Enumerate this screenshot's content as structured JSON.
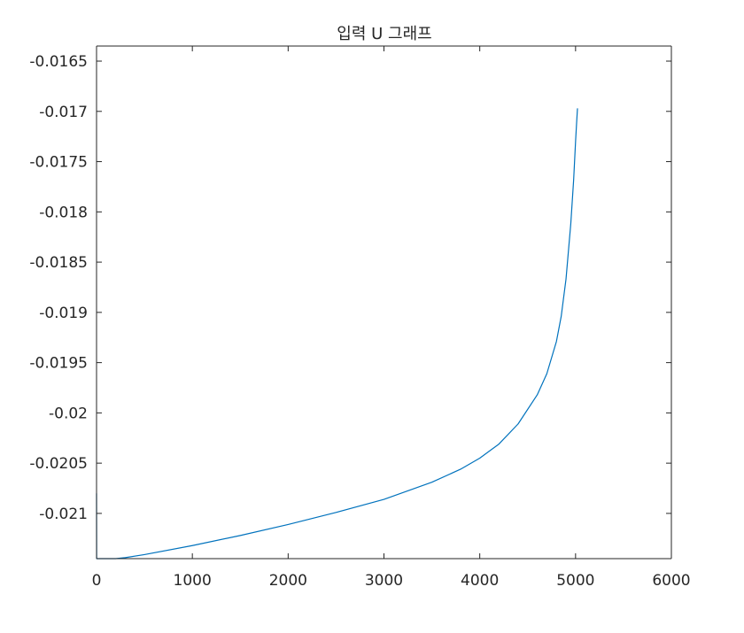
{
  "chart_data": {
    "type": "line",
    "title": "입력 U 그래프",
    "xlabel": "",
    "ylabel": "",
    "xlim": [
      0,
      6000
    ],
    "ylim": [
      -0.02145,
      -0.01635
    ],
    "xticks": [
      0,
      1000,
      2000,
      3000,
      4000,
      5000,
      6000
    ],
    "xtick_labels": [
      "0",
      "1000",
      "2000",
      "3000",
      "4000",
      "5000",
      "6000"
    ],
    "yticks": [
      -0.0165,
      -0.017,
      -0.0175,
      -0.018,
      -0.0185,
      -0.019,
      -0.0195,
      -0.02,
      -0.0205,
      -0.021
    ],
    "ytick_labels": [
      "-0.0165",
      "-0.017",
      "-0.0175",
      "-0.018",
      "-0.0185",
      "-0.019",
      "-0.0195",
      "-0.02",
      "-0.0205",
      "-0.021"
    ],
    "grid": false,
    "legend": false,
    "series": [
      {
        "color": "#0072bd",
        "x": [
          0,
          1,
          5,
          12,
          200,
          300,
          500,
          1000,
          1500,
          2000,
          2500,
          3000,
          3500,
          3800,
          4000,
          4200,
          4400,
          4600,
          4700,
          4800,
          4850,
          4900,
          4950,
          4980,
          5000,
          5010,
          5020
        ],
        "y": [
          -0.0208,
          -0.02145,
          -0.02145,
          -0.02145,
          -0.02145,
          -0.02144,
          -0.02141,
          -0.02132,
          -0.02122,
          -0.02111,
          -0.02099,
          -0.02086,
          -0.02069,
          -0.02056,
          -0.02045,
          -0.02031,
          -0.02011,
          -0.01982,
          -0.01961,
          -0.01929,
          -0.01904,
          -0.01867,
          -0.01812,
          -0.01768,
          -0.0173,
          -0.01713,
          -0.01697
        ]
      }
    ]
  }
}
